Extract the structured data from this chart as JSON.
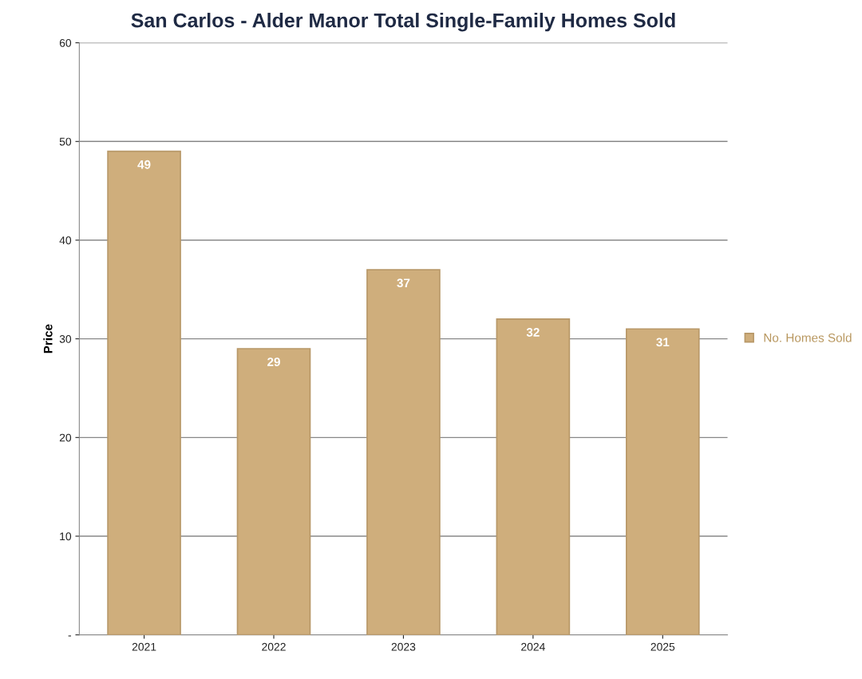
{
  "chart_data": {
    "type": "bar",
    "title": "San Carlos - Alder Manor Total Single-Family Homes Sold",
    "ylabel": "Price",
    "categories": [
      "2021",
      "2022",
      "2023",
      "2024",
      "2025"
    ],
    "series": [
      {
        "name": "No. Homes Sold",
        "color": "#cfae7c",
        "values": [
          49,
          29,
          37,
          32,
          31
        ]
      }
    ],
    "ylim": [
      0,
      60
    ],
    "yticks": [
      {
        "value": 0,
        "label": "-"
      },
      10,
      20,
      30,
      40,
      50,
      60
    ],
    "grid": "y",
    "legend": "right",
    "data_labels": true
  }
}
